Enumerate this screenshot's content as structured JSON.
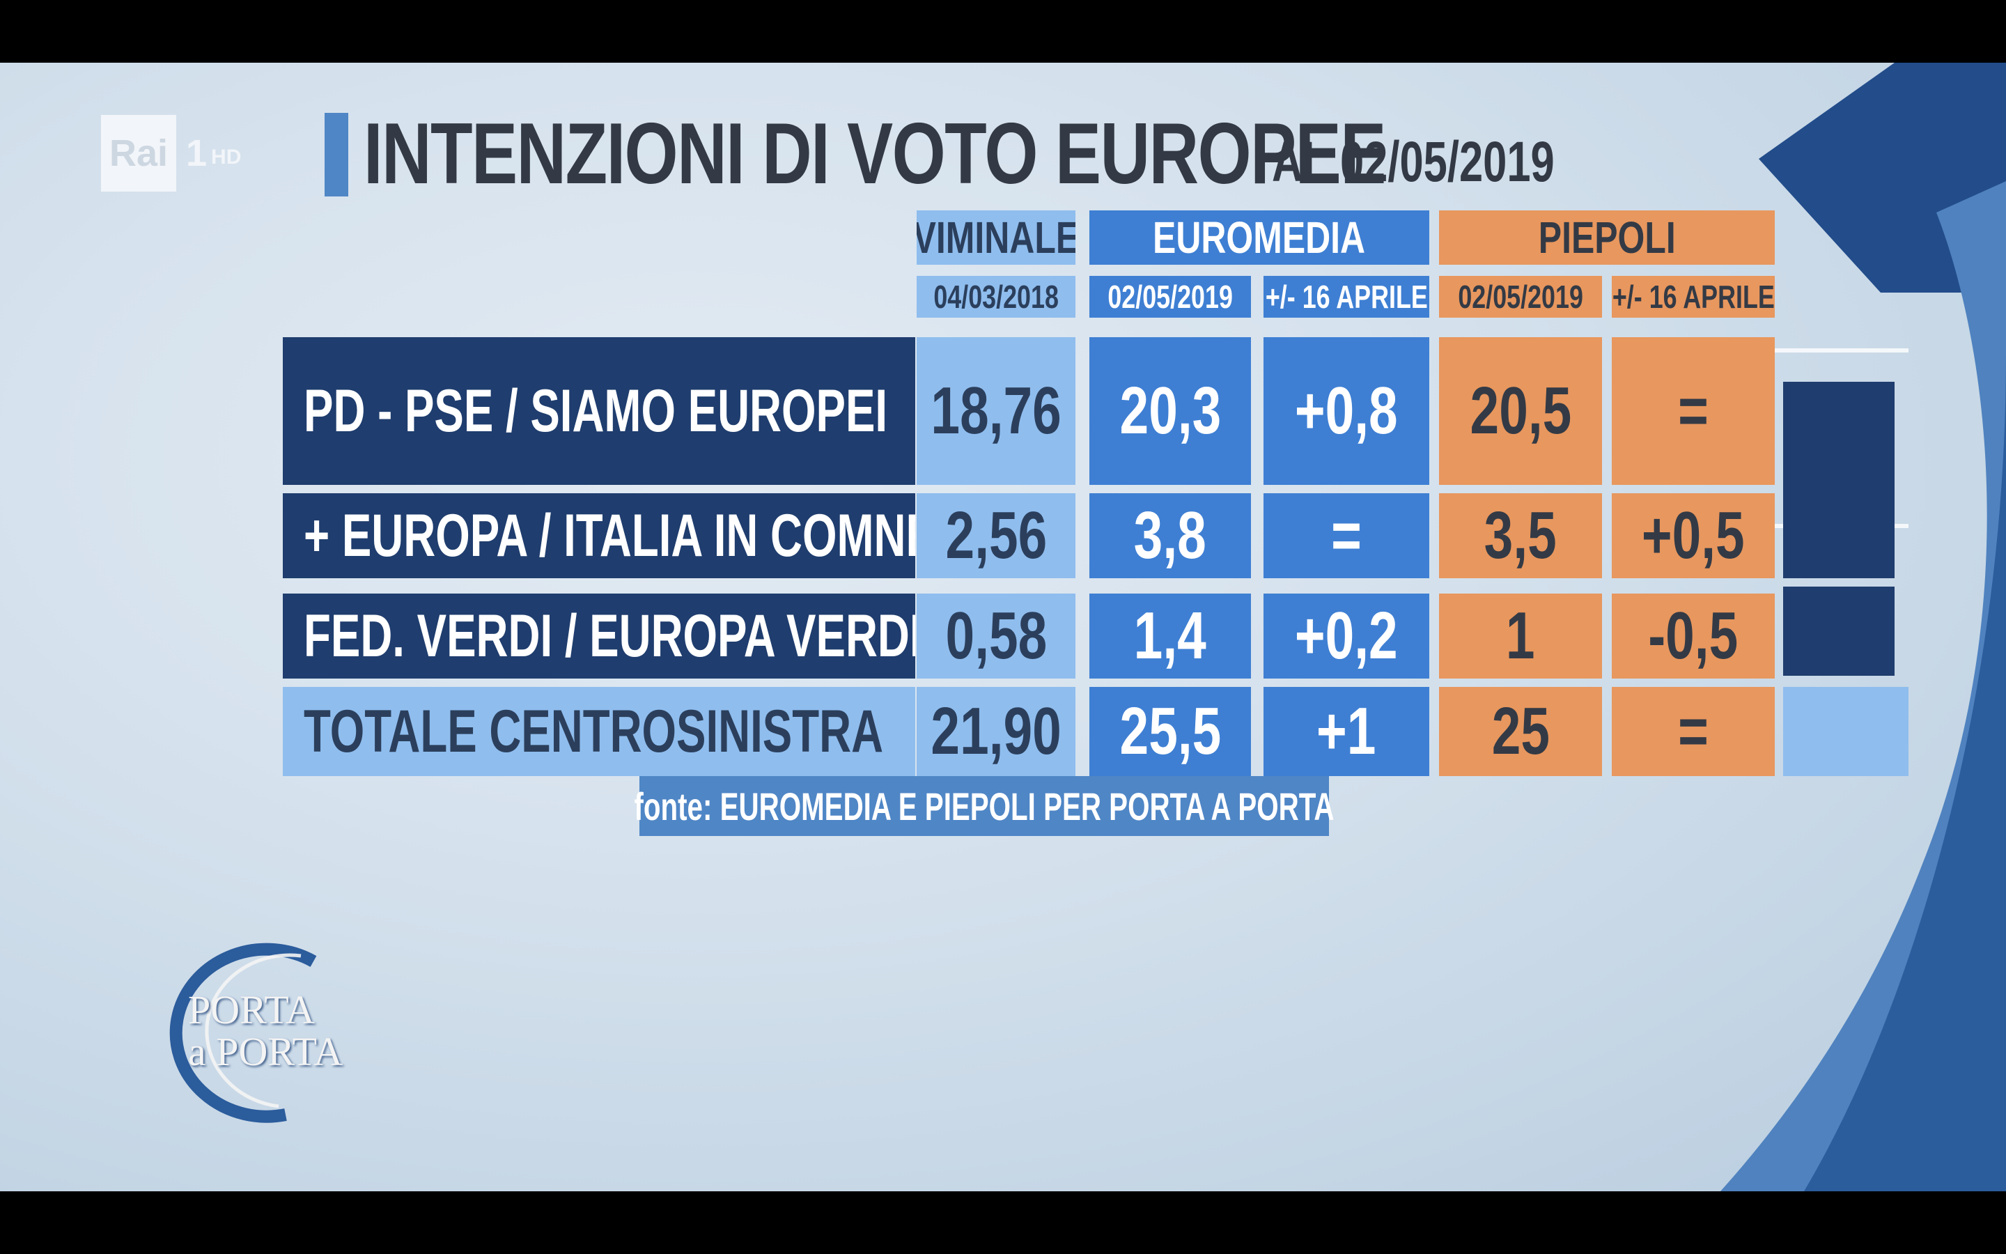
{
  "channel": {
    "brand": "Rai",
    "number": "1",
    "quality": "HD"
  },
  "title": {
    "main": "INTENZIONI DI VOTO EUROPEE",
    "date": "AL 02/05/2019"
  },
  "columns": {
    "viminale": {
      "label": "VIMINALE",
      "date": "04/03/2018"
    },
    "euromedia": {
      "label": "EUROMEDIA",
      "date": "02/05/2019",
      "delta": "+/- 16 APRILE"
    },
    "piepoli": {
      "label": "PIEPOLI",
      "date": "02/05/2019",
      "delta": "+/- 16 APRILE"
    }
  },
  "rows": [
    {
      "label": "PD - PSE / SIAMO EUROPEI",
      "viminale": "18,76",
      "euromedia": "20,3",
      "euromedia_delta": "+0,8",
      "piepoli": "20,5",
      "piepoli_delta": "="
    },
    {
      "label": "+ EUROPA / ITALIA IN COMNE / PDE",
      "viminale": "2,56",
      "euromedia": "3,8",
      "euromedia_delta": "=",
      "piepoli": "3,5",
      "piepoli_delta": "+0,5"
    },
    {
      "label": "FED. VERDI / EUROPA VERDE",
      "viminale": "0,58",
      "euromedia": "1,4",
      "euromedia_delta": "+0,2",
      "piepoli": "1",
      "piepoli_delta": "-0,5"
    },
    {
      "label": "TOTALE CENTROSINISTRA",
      "viminale": "21,90",
      "euromedia": "25,5",
      "euromedia_delta": "+1",
      "piepoli": "25",
      "piepoli_delta": "="
    }
  ],
  "source": "fonte: EUROMEDIA E PIEPOLI PER PORTA A PORTA",
  "show_logo": {
    "line1": "PORTA",
    "line2": "a PORTA"
  },
  "colors": {
    "dark_row": "#1f3d6e",
    "viminale": "#8fbdee",
    "euromedia": "#3e7fd3",
    "piepoli": "#e8975e",
    "title_bar": "#4f86c6"
  }
}
